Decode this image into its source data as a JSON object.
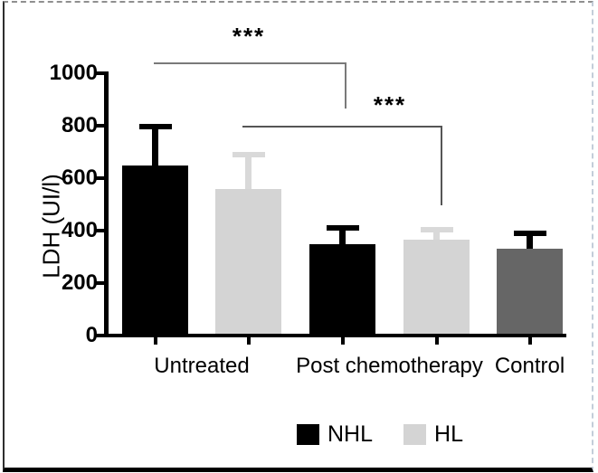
{
  "chart_data": {
    "type": "bar",
    "title": "",
    "ylabel": "LDH (UI/l)",
    "xlabel": "",
    "ylim": [
      0,
      1000
    ],
    "yticks": [
      0,
      200,
      400,
      600,
      800,
      1000
    ],
    "categories": [
      "Untreated",
      "Post chemotherapy",
      "Control"
    ],
    "grid": false,
    "legend_position": "bottom-center",
    "series_names": [
      "NHL",
      "HL"
    ],
    "bars": [
      {
        "category": "Untreated",
        "series": "NHL",
        "value": 650,
        "error_top": 795,
        "fill": "#000000",
        "error_color": "#000000"
      },
      {
        "category": "Untreated",
        "series": "HL",
        "value": 560,
        "error_top": 690,
        "fill": "#d4d4d4",
        "error_color": "#d9d9d9"
      },
      {
        "category": "Post chemotherapy",
        "series": "NHL",
        "value": 350,
        "error_top": 410,
        "fill": "#000000",
        "error_color": "#000000"
      },
      {
        "category": "Post chemotherapy",
        "series": "HL",
        "value": 365,
        "error_top": 405,
        "fill": "#d4d4d4",
        "error_color": "#d9d9d9"
      },
      {
        "category": "Control",
        "series": "Control",
        "value": 330,
        "error_top": 390,
        "fill": "#666666",
        "error_color": "#000000"
      }
    ],
    "annotations": [
      {
        "label": "***",
        "between": [
          "Untreated:NHL",
          "Post chemotherapy:NHL"
        ]
      },
      {
        "label": "***",
        "between": [
          "Untreated:HL",
          "Post chemotherapy:HL"
        ]
      }
    ],
    "legend": [
      {
        "label": "NHL",
        "color": "#000000"
      },
      {
        "label": "HL",
        "color": "#d4d4d4"
      }
    ]
  }
}
